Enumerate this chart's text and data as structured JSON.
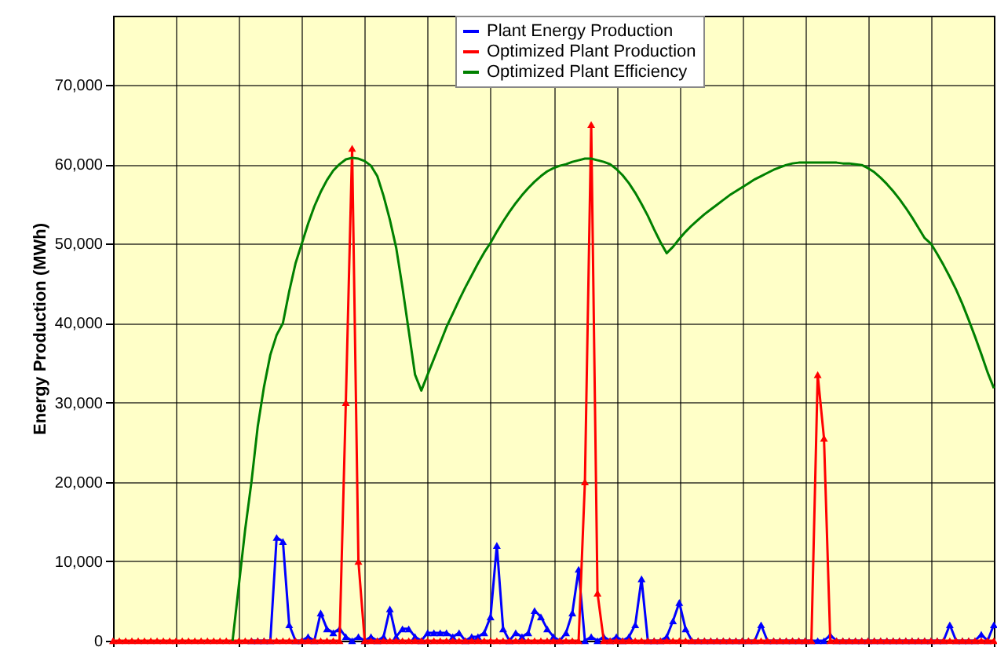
{
  "chart_data": {
    "type": "line",
    "ylabel": "Energy Production (MWh)",
    "categories": [
      null,
      null,
      null,
      null,
      null,
      null,
      null,
      null,
      null,
      null,
      null,
      null,
      null,
      null,
      null,
      null,
      null,
      null,
      null,
      null,
      null,
      null,
      null,
      null,
      null,
      null,
      null,
      null,
      null,
      null,
      null,
      null,
      null,
      null,
      null,
      null,
      null,
      null,
      null,
      null,
      null,
      null,
      null,
      null,
      null,
      null,
      null,
      null,
      null,
      null,
      null,
      null,
      null,
      null,
      null,
      null,
      null,
      null,
      null,
      null,
      null,
      null,
      null,
      null,
      null,
      null,
      null,
      null,
      null,
      null,
      null,
      null,
      null,
      null,
      null,
      null,
      null,
      null,
      null,
      null,
      null,
      null,
      null,
      null,
      null,
      null,
      null,
      null,
      null,
      null,
      null,
      null,
      null,
      null,
      null,
      null,
      null,
      null,
      null,
      null,
      null,
      null,
      null,
      null,
      null,
      null,
      null,
      null,
      null,
      null,
      null,
      null,
      null,
      null,
      null,
      null,
      null,
      null,
      null,
      null,
      null,
      null,
      null,
      null,
      null,
      null,
      null,
      null,
      null,
      null,
      null,
      null,
      null,
      null,
      null,
      null,
      null,
      null,
      null,
      null,
      null
    ],
    "series": [
      {
        "name": "Plant Energy Production",
        "color": "#0000ff",
        "marker": "triangle",
        "values": [
          null,
          null,
          null,
          null,
          null,
          null,
          null,
          null,
          null,
          null,
          null,
          null,
          null,
          null,
          null,
          null,
          null,
          null,
          null,
          null,
          null,
          null,
          0,
          0,
          0,
          0,
          13000,
          12500,
          2000,
          0,
          0,
          500,
          0,
          3500,
          1500,
          1000,
          1500,
          500,
          0,
          500,
          0,
          500,
          0,
          500,
          4000,
          500,
          1500,
          1500,
          500,
          0,
          1000,
          1000,
          1000,
          1000,
          500,
          1000,
          0,
          500,
          500,
          1000,
          3000,
          12000,
          1500,
          0,
          1000,
          500,
          1000,
          3800,
          3000,
          1500,
          500,
          0,
          1000,
          3500,
          9000,
          0,
          500,
          0,
          500,
          0,
          500,
          0,
          500,
          2000,
          7800,
          0,
          0,
          0,
          500,
          2500,
          4800,
          1500,
          0,
          0,
          0,
          0,
          0,
          0,
          0,
          0,
          0,
          0,
          0,
          2000,
          0,
          0,
          0,
          0,
          0,
          0,
          0,
          0,
          0,
          0,
          700,
          0,
          0,
          0,
          0,
          0,
          0,
          0,
          0,
          0,
          0,
          0,
          0,
          0,
          0,
          0,
          0,
          0,
          0,
          2000,
          0,
          0,
          0,
          0,
          800,
          0,
          2000
        ]
      },
      {
        "name": "Optimized Plant Production",
        "color": "#ff0000",
        "marker": "triangle",
        "values": [
          0,
          0,
          0,
          0,
          0,
          0,
          0,
          0,
          0,
          0,
          0,
          0,
          0,
          0,
          0,
          0,
          0,
          0,
          0,
          0,
          0,
          0,
          0,
          0,
          0,
          0,
          0,
          0,
          0,
          0,
          0,
          0,
          0,
          0,
          0,
          0,
          0,
          30000,
          62000,
          10000,
          0,
          0,
          0,
          0,
          0,
          0,
          0,
          0,
          0,
          0,
          0,
          0,
          0,
          0,
          0,
          0,
          0,
          0,
          0,
          0,
          0,
          0,
          0,
          0,
          0,
          0,
          0,
          0,
          0,
          0,
          0,
          0,
          0,
          0,
          0,
          20000,
          65000,
          6000,
          0,
          0,
          0,
          0,
          0,
          0,
          0,
          0,
          0,
          0,
          0,
          0,
          0,
          0,
          0,
          0,
          0,
          0,
          0,
          0,
          0,
          0,
          0,
          0,
          0,
          0,
          0,
          0,
          0,
          0,
          0,
          0,
          0,
          0,
          33500,
          25500,
          0,
          0,
          0,
          0,
          0,
          0,
          0,
          0,
          0,
          0,
          0,
          0,
          0,
          0,
          0,
          0,
          0,
          0,
          0,
          0,
          0,
          0,
          0,
          0,
          0,
          0,
          0
        ]
      },
      {
        "name": "Optimized Plant Efficiency",
        "color": "#008000",
        "marker": "none",
        "values": [
          null,
          null,
          null,
          null,
          null,
          null,
          null,
          null,
          null,
          null,
          null,
          null,
          null,
          null,
          null,
          null,
          null,
          null,
          null,
          0,
          7000,
          14000,
          20000,
          27000,
          32000,
          36000,
          38500,
          40000,
          44000,
          47500,
          50000,
          52500,
          54700,
          56500,
          58000,
          59200,
          60000,
          60600,
          60800,
          60700,
          60400,
          59800,
          58500,
          56000,
          53000,
          49500,
          44500,
          39000,
          33500,
          31500,
          33500,
          35500,
          37500,
          39500,
          41200,
          42900,
          44500,
          46000,
          47500,
          48900,
          50100,
          51500,
          52800,
          54000,
          55100,
          56100,
          57000,
          57800,
          58500,
          59100,
          59500,
          59800,
          60000,
          60300,
          60500,
          60700,
          60700,
          60500,
          60300,
          60000,
          59400,
          58600,
          57600,
          56400,
          55000,
          53500,
          51800,
          50200,
          48800,
          49600,
          50600,
          51500,
          52300,
          53000,
          53700,
          54300,
          54900,
          55500,
          56100,
          56600,
          57100,
          57600,
          58100,
          58500,
          58900,
          59300,
          59600,
          59900,
          60100,
          60200,
          60200,
          60200,
          60200,
          60200,
          60200,
          60200,
          60100,
          60100,
          60000,
          59900,
          59500,
          59000,
          58300,
          57500,
          56600,
          55600,
          54500,
          53300,
          52000,
          50700,
          50000,
          48700,
          47300,
          45800,
          44200,
          42400,
          40400,
          38300,
          36100,
          33800,
          31800
        ]
      }
    ],
    "ylim": [
      0,
      78700
    ],
    "yticks": [
      {
        "value": 0,
        "label": "0"
      },
      {
        "value": 10000,
        "label": "10,000"
      },
      {
        "value": 20000,
        "label": "20,000"
      },
      {
        "value": 30000,
        "label": "30,000"
      },
      {
        "value": 40000,
        "label": "40,000"
      },
      {
        "value": 50000,
        "label": "50,000"
      },
      {
        "value": 60000,
        "label": "60,000"
      },
      {
        "value": 70000,
        "label": "70,000"
      }
    ],
    "grid": true,
    "legend": "top",
    "tick_labels": "y",
    "line_style": "solid"
  }
}
